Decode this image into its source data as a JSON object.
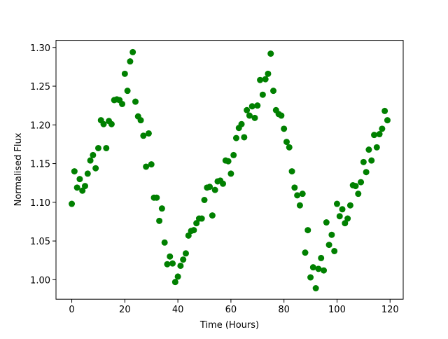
{
  "chart_data": {
    "type": "scatter",
    "x_label": "Time (Hours)",
    "y_label": "Normalised Flux",
    "color": "#008000",
    "x": [
      0,
      1,
      2,
      3,
      4,
      5,
      6,
      7,
      8,
      9,
      10,
      11,
      12,
      13,
      14,
      15,
      16,
      17,
      18,
      19,
      20,
      21,
      22,
      23,
      24,
      25,
      26,
      27,
      28,
      29,
      30,
      31,
      32,
      33,
      34,
      35,
      36,
      37,
      38,
      39,
      40,
      41,
      42,
      43,
      44,
      45,
      46,
      47,
      48,
      49,
      50,
      51,
      52,
      53,
      54,
      55,
      56,
      57,
      58,
      59,
      60,
      61,
      62,
      63,
      64,
      65,
      66,
      67,
      68,
      69,
      70,
      71,
      72,
      73,
      74,
      75,
      76,
      77,
      78,
      79,
      80,
      81,
      82,
      83,
      84,
      85,
      86,
      87,
      88,
      89,
      90,
      91,
      92,
      93,
      94,
      95,
      96,
      97,
      98,
      99,
      100,
      101,
      102,
      103,
      104,
      105,
      106,
      107,
      108,
      109,
      110,
      111,
      112,
      113,
      114,
      115,
      116,
      117,
      118,
      119
    ],
    "values": [
      1.098,
      1.14,
      1.119,
      1.13,
      1.115,
      1.121,
      1.137,
      1.154,
      1.161,
      1.144,
      1.17,
      1.206,
      1.201,
      1.17,
      1.205,
      1.201,
      1.232,
      1.233,
      1.232,
      1.227,
      1.266,
      1.244,
      1.282,
      1.294,
      1.23,
      1.211,
      1.206,
      1.186,
      1.146,
      1.189,
      1.149,
      1.106,
      1.106,
      1.076,
      1.092,
      1.048,
      1.02,
      1.03,
      1.021,
      0.997,
      1.004,
      1.018,
      1.026,
      1.034,
      1.057,
      1.063,
      1.064,
      1.073,
      1.079,
      1.079,
      1.103,
      1.119,
      1.12,
      1.083,
      1.116,
      1.127,
      1.128,
      1.124,
      1.154,
      1.153,
      1.137,
      1.161,
      1.183,
      1.196,
      1.201,
      1.184,
      1.219,
      1.212,
      1.224,
      1.209,
      1.225,
      1.258,
      1.239,
      1.259,
      1.266,
      1.292,
      1.244,
      1.219,
      1.214,
      1.212,
      1.195,
      1.178,
      1.171,
      1.14,
      1.119,
      1.109,
      1.096,
      1.111,
      1.035,
      1.064,
      1.003,
      1.016,
      0.989,
      1.014,
      1.028,
      1.012,
      1.074,
      1.045,
      1.058,
      1.037,
      1.098,
      1.082,
      1.091,
      1.073,
      1.079,
      1.096,
      1.122,
      1.121,
      1.111,
      1.126,
      1.152,
      1.139,
      1.168,
      1.154,
      1.187,
      1.171,
      1.188,
      1.195,
      1.218,
      1.206
    ],
    "xlim": [
      -5.95,
      124.95
    ],
    "xticks": [
      0,
      20,
      40,
      60,
      80,
      100,
      120
    ],
    "ylim": [
      0.9748,
      1.3092
    ],
    "yticks": [
      {
        "value": 1.0,
        "label": "1.00"
      },
      {
        "value": 1.05,
        "label": "1.05"
      },
      {
        "value": 1.1,
        "label": "1.10"
      },
      {
        "value": 1.15,
        "label": "1.15"
      },
      {
        "value": 1.2,
        "label": "1.20"
      },
      {
        "value": 1.25,
        "label": "1.25"
      },
      {
        "value": 1.3,
        "label": "1.30"
      }
    ]
  }
}
